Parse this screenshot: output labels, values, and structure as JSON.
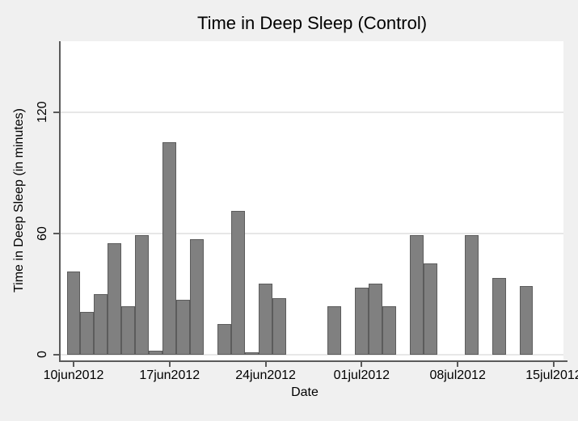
{
  "chart_data": {
    "type": "bar",
    "title": "Time in Deep Sleep (Control)",
    "xlabel": "Date",
    "ylabel": "Time in Deep Sleep (in minutes)",
    "ylim": [
      0,
      155
    ],
    "grid": true,
    "legend": "none",
    "y_ticks": [
      0,
      60,
      120
    ],
    "x_ticks": [
      {
        "day": 0,
        "label": "10jun2012"
      },
      {
        "day": 7,
        "label": "17jun2012"
      },
      {
        "day": 14,
        "label": "24jun2012"
      },
      {
        "day": 21,
        "label": "01jul2012"
      },
      {
        "day": 28,
        "label": "08jul2012"
      },
      {
        "day": 35,
        "label": "15jul2012"
      }
    ],
    "bars": [
      {
        "date": "10jun2012",
        "day": 0,
        "value": 41
      },
      {
        "date": "11jun2012",
        "day": 1,
        "value": 21
      },
      {
        "date": "12jun2012",
        "day": 2,
        "value": 30
      },
      {
        "date": "13jun2012",
        "day": 3,
        "value": 55
      },
      {
        "date": "14jun2012",
        "day": 4,
        "value": 24
      },
      {
        "date": "15jun2012",
        "day": 5,
        "value": 59
      },
      {
        "date": "16jun2012",
        "day": 6,
        "value": 2
      },
      {
        "date": "17jun2012",
        "day": 7,
        "value": 105
      },
      {
        "date": "18jun2012",
        "day": 8,
        "value": 27
      },
      {
        "date": "19jun2012",
        "day": 9,
        "value": 57
      },
      {
        "date": "21jun2012",
        "day": 11,
        "value": 15
      },
      {
        "date": "22jun2012",
        "day": 12,
        "value": 71
      },
      {
        "date": "23jun2012",
        "day": 13,
        "value": 1
      },
      {
        "date": "24jun2012",
        "day": 14,
        "value": 35
      },
      {
        "date": "25jun2012",
        "day": 15,
        "value": 28
      },
      {
        "date": "29jun2012",
        "day": 19,
        "value": 24
      },
      {
        "date": "01jul2012",
        "day": 21,
        "value": 33
      },
      {
        "date": "02jul2012",
        "day": 22,
        "value": 35
      },
      {
        "date": "03jul2012",
        "day": 23,
        "value": 24
      },
      {
        "date": "05jul2012",
        "day": 25,
        "value": 59
      },
      {
        "date": "06jul2012",
        "day": 26,
        "value": 45
      },
      {
        "date": "09jul2012",
        "day": 29,
        "value": 59
      },
      {
        "date": "11jul2012",
        "day": 31,
        "value": 38
      },
      {
        "date": "13jul2012",
        "day": 33,
        "value": 34
      }
    ],
    "colors": {
      "figure_background": "#f0f0f0",
      "plot_background": "#ffffff",
      "bar_fill": "#808080",
      "bar_border": "#5c5c5c",
      "gridline": "#e7e7e7",
      "axis_line": "#5a5a5a",
      "text": "#000000"
    }
  }
}
